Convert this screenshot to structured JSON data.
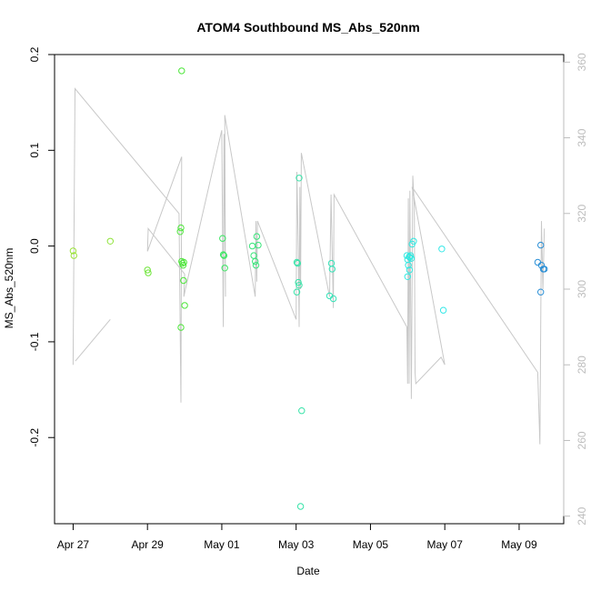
{
  "chart_data": {
    "type": "scatter",
    "title": "ATOM4 Southbound MS_Abs_520nm",
    "xlabel": "Date",
    "ylabel": "MS_Abs_520nm",
    "x_tick_labels": [
      "Apr 27",
      "Apr 29",
      "May 01",
      "May 03",
      "May 05",
      "May 07",
      "May 09"
    ],
    "x_tick_days": [
      0,
      2,
      4,
      6,
      8,
      10,
      12
    ],
    "xlim_days": [
      -0.5,
      13.2
    ],
    "ylim": [
      -0.29,
      0.2
    ],
    "y_ticks": [
      -0.2,
      -0.1,
      0.0,
      0.1,
      0.2
    ],
    "y_tick_labels": [
      "-0.2",
      "-0.1",
      "0.0",
      "0.1",
      "0.2"
    ],
    "y2lim": [
      238,
      362
    ],
    "y2_ticks": [
      240,
      260,
      280,
      300,
      320,
      340,
      360
    ],
    "y2_tick_labels": [
      "240",
      "260",
      "280",
      "300",
      "320",
      "340",
      "360"
    ],
    "grid": false,
    "colors": {
      "line": "#c8c8c8",
      "axis": "#000000",
      "right_axis": "#bdbdbd"
    },
    "points": [
      {
        "day": 0.0,
        "y": -0.005,
        "color": "#9be33a"
      },
      {
        "day": 0.02,
        "y": -0.01,
        "color": "#9be33a"
      },
      {
        "day": 1.0,
        "y": 0.005,
        "color": "#8fe33a"
      },
      {
        "day": 2.0,
        "y": -0.025,
        "color": "#6fe53a"
      },
      {
        "day": 2.02,
        "y": -0.028,
        "color": "#6fe53a"
      },
      {
        "day": 2.88,
        "y": 0.015,
        "color": "#4ee63b"
      },
      {
        "day": 2.9,
        "y": 0.019,
        "color": "#4ee63b"
      },
      {
        "day": 2.92,
        "y": -0.016,
        "color": "#4ee63b"
      },
      {
        "day": 2.94,
        "y": -0.018,
        "color": "#4ee63b"
      },
      {
        "day": 2.96,
        "y": -0.02,
        "color": "#4ee63b"
      },
      {
        "day": 2.98,
        "y": -0.017,
        "color": "#4ee63b"
      },
      {
        "day": 2.97,
        "y": -0.036,
        "color": "#4ee63b"
      },
      {
        "day": 3.0,
        "y": -0.062,
        "color": "#4ee63b"
      },
      {
        "day": 2.9,
        "y": -0.085,
        "color": "#4ee63b"
      },
      {
        "day": 2.92,
        "y": 0.183,
        "color": "#4ee63b"
      },
      {
        "day": 4.02,
        "y": 0.008,
        "color": "#38e660"
      },
      {
        "day": 4.04,
        "y": -0.009,
        "color": "#38e660"
      },
      {
        "day": 4.06,
        "y": -0.01,
        "color": "#38e660"
      },
      {
        "day": 4.08,
        "y": -0.023,
        "color": "#38e660"
      },
      {
        "day": 4.82,
        "y": 0.0,
        "color": "#38e67a"
      },
      {
        "day": 4.86,
        "y": -0.01,
        "color": "#38e67a"
      },
      {
        "day": 4.9,
        "y": -0.016,
        "color": "#38e67a"
      },
      {
        "day": 4.92,
        "y": -0.02,
        "color": "#38e67a"
      },
      {
        "day": 4.94,
        "y": 0.01,
        "color": "#38e67a"
      },
      {
        "day": 4.98,
        "y": 0.001,
        "color": "#38e67a"
      },
      {
        "day": 6.02,
        "y": -0.017,
        "color": "#36e3a8"
      },
      {
        "day": 6.04,
        "y": -0.018,
        "color": "#36e3a8"
      },
      {
        "day": 6.06,
        "y": -0.038,
        "color": "#36e3a8"
      },
      {
        "day": 6.08,
        "y": -0.041,
        "color": "#36e3a8"
      },
      {
        "day": 6.02,
        "y": -0.048,
        "color": "#36e3a8"
      },
      {
        "day": 6.08,
        "y": 0.071,
        "color": "#36e3a8"
      },
      {
        "day": 6.15,
        "y": -0.172,
        "color": "#36e3a8"
      },
      {
        "day": 6.12,
        "y": -0.272,
        "color": "#36e3a8"
      },
      {
        "day": 6.9,
        "y": -0.052,
        "color": "#36e3b8"
      },
      {
        "day": 6.95,
        "y": -0.018,
        "color": "#36e3b8"
      },
      {
        "day": 6.97,
        "y": -0.024,
        "color": "#36e3b8"
      },
      {
        "day": 7.0,
        "y": -0.055,
        "color": "#36e3b8"
      },
      {
        "day": 8.98,
        "y": -0.01,
        "color": "#33e8e0"
      },
      {
        "day": 9.0,
        "y": -0.014,
        "color": "#33e8e0"
      },
      {
        "day": 9.02,
        "y": -0.02,
        "color": "#33e8e0"
      },
      {
        "day": 9.04,
        "y": -0.011,
        "color": "#33e8e0"
      },
      {
        "day": 9.06,
        "y": -0.012,
        "color": "#33e8e0"
      },
      {
        "day": 9.08,
        "y": -0.01,
        "color": "#33e8e0"
      },
      {
        "day": 9.1,
        "y": -0.013,
        "color": "#33e8e0"
      },
      {
        "day": 9.05,
        "y": -0.025,
        "color": "#33e8e0"
      },
      {
        "day": 9.0,
        "y": -0.032,
        "color": "#33e8e0"
      },
      {
        "day": 9.12,
        "y": 0.002,
        "color": "#33e8e0"
      },
      {
        "day": 9.16,
        "y": 0.005,
        "color": "#33e8e0"
      },
      {
        "day": 9.92,
        "y": -0.003,
        "color": "#33e8e8"
      },
      {
        "day": 9.96,
        "y": -0.067,
        "color": "#33e8e8"
      },
      {
        "day": 12.5,
        "y": -0.017,
        "color": "#2a8fd6"
      },
      {
        "day": 12.58,
        "y": 0.001,
        "color": "#2a8fd6"
      },
      {
        "day": 12.6,
        "y": -0.02,
        "color": "#2a8fd6"
      },
      {
        "day": 12.65,
        "y": -0.024,
        "color": "#2a8fd6"
      },
      {
        "day": 12.68,
        "y": -0.024,
        "color": "#2a8fd6"
      },
      {
        "day": 12.58,
        "y": -0.048,
        "color": "#2a8fd6"
      }
    ],
    "line_right_axis": [
      {
        "day": 0.0,
        "y": 280
      },
      {
        "day": 0.05,
        "y": 353
      },
      {
        "day": 2.85,
        "y": 320
      },
      {
        "day": 2.9,
        "y": 270
      },
      {
        "day": 2.92,
        "y": 335
      },
      {
        "day": 2.0,
        "y": 310
      },
      {
        "day": 2.02,
        "y": 316
      },
      {
        "day": 3.0,
        "y": 304
      },
      {
        "day": 2.98,
        "y": 298
      },
      {
        "day": 3.02,
        "y": 300
      },
      {
        "day": 4.0,
        "y": 342
      },
      {
        "day": 4.04,
        "y": 290
      },
      {
        "day": 4.06,
        "y": 341
      },
      {
        "day": 4.1,
        "y": 298
      },
      {
        "day": 4.08,
        "y": 346
      },
      {
        "day": 4.9,
        "y": 298
      },
      {
        "day": 4.92,
        "y": 318
      },
      {
        "day": 4.94,
        "y": 302
      },
      {
        "day": 4.96,
        "y": 318
      },
      {
        "day": 6.0,
        "y": 292
      },
      {
        "day": 6.02,
        "y": 331
      },
      {
        "day": 6.06,
        "y": 310
      },
      {
        "day": 6.08,
        "y": 290
      },
      {
        "day": 6.1,
        "y": 327
      },
      {
        "day": 6.12,
        "y": 300
      },
      {
        "day": 6.14,
        "y": 336
      },
      {
        "day": 6.9,
        "y": 298
      },
      {
        "day": 6.94,
        "y": 325
      },
      {
        "day": 7.0,
        "y": 295
      },
      {
        "day": 7.02,
        "y": 325
      },
      {
        "day": 8.98,
        "y": 290
      },
      {
        "day": 9.0,
        "y": 275
      },
      {
        "day": 9.02,
        "y": 324
      },
      {
        "day": 9.04,
        "y": 275
      },
      {
        "day": 9.06,
        "y": 326
      },
      {
        "day": 9.1,
        "y": 271
      },
      {
        "day": 9.14,
        "y": 330
      },
      {
        "day": 9.18,
        "y": 322
      },
      {
        "day": 9.2,
        "y": 278
      },
      {
        "day": 9.22,
        "y": 275
      },
      {
        "day": 9.9,
        "y": 282
      },
      {
        "day": 10.0,
        "y": 280
      },
      {
        "day": 9.12,
        "y": 327
      },
      {
        "day": 12.5,
        "y": 278
      },
      {
        "day": 12.56,
        "y": 259
      },
      {
        "day": 12.6,
        "y": 318
      },
      {
        "day": 12.64,
        "y": 300
      },
      {
        "day": 12.68,
        "y": 316
      }
    ],
    "line_right_axis_extra": [
      {
        "day": 0.06,
        "y": 281
      },
      {
        "day": 1.0,
        "y": 292
      }
    ]
  }
}
